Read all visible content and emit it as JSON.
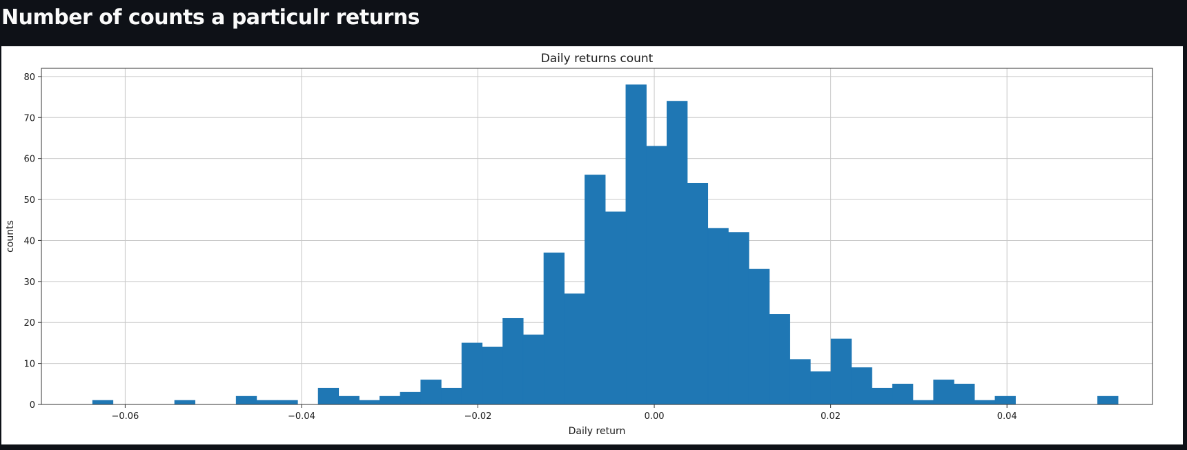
{
  "page": {
    "title": "Number of counts a particulr returns"
  },
  "colors": {
    "background": "#0e1117",
    "panel": "#ffffff",
    "bar": "#1f77b4",
    "grid": "#c8c8c8",
    "title_text": "#fafafa"
  },
  "chart_data": {
    "type": "bar",
    "title": "Daily returns count",
    "xlabel": "Daily return",
    "ylabel": "counts",
    "xlim": [
      -0.0695,
      0.0565
    ],
    "ylim": [
      0,
      82
    ],
    "grid": true,
    "xticks": [
      -0.06,
      -0.04,
      -0.02,
      0.0,
      0.02,
      0.04
    ],
    "xtick_labels": [
      "−0.06",
      "−0.04",
      "−0.02",
      "0.00",
      "0.02",
      "0.04"
    ],
    "yticks": [
      0,
      10,
      20,
      30,
      40,
      50,
      60,
      70,
      80
    ],
    "ytick_labels": [
      "0",
      "10",
      "20",
      "30",
      "40",
      "50",
      "60",
      "70",
      "80"
    ],
    "bin_start": -0.0637,
    "bin_width": 0.002326,
    "counts": [
      1,
      0,
      0,
      0,
      1,
      0,
      0,
      2,
      1,
      1,
      0,
      4,
      2,
      1,
      2,
      3,
      6,
      4,
      15,
      14,
      21,
      17,
      37,
      27,
      56,
      47,
      78,
      63,
      74,
      54,
      43,
      42,
      33,
      22,
      11,
      8,
      16,
      9,
      4,
      5,
      1,
      6,
      5,
      1,
      2,
      0,
      0,
      0,
      0,
      2
    ]
  }
}
